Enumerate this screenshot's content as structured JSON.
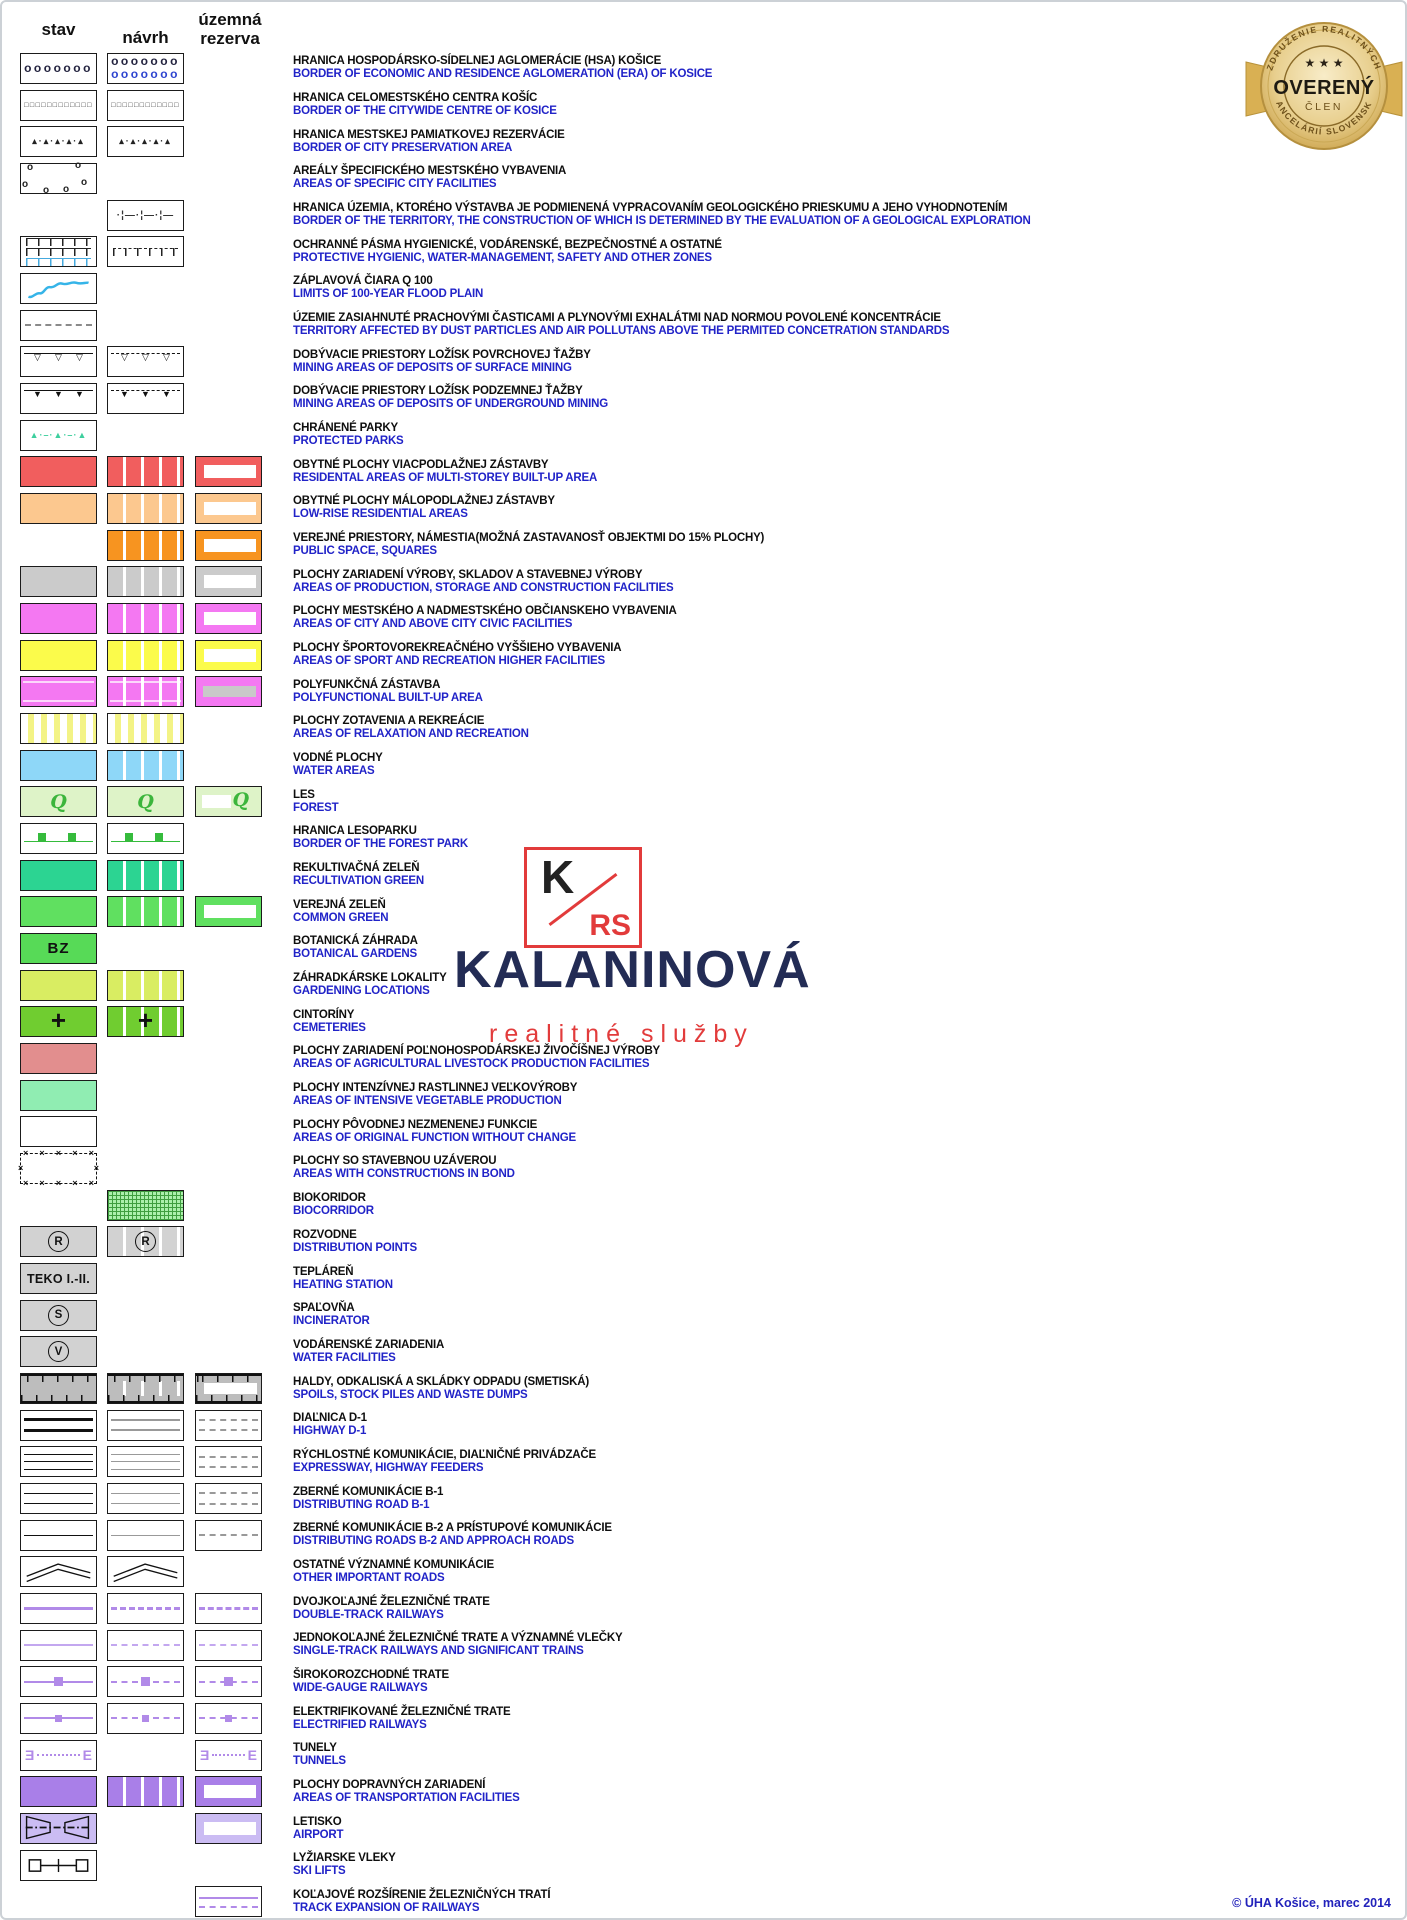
{
  "header": {
    "stav": "stav",
    "navrh": "návrh",
    "rezerva_line1": "územná",
    "rezerva_line2": "rezerva"
  },
  "badge": {
    "arc_top": "ZDRUŽENIE REALITNÝCH",
    "arc_bottom": "KANCELÁRIÍ SLOVENSKA",
    "title": "OVERENÝ",
    "subtitle": "ČLEN",
    "stars": "★ ★ ★",
    "gold": "#d3a94f",
    "gold_light": "#f8ecc8"
  },
  "watermark": {
    "mark_k": "K",
    "mark_rs": "RS",
    "name": "KALANINOVÁ",
    "tagline": "realitné služby",
    "accent": "#e23b3b",
    "navy": "#232c55"
  },
  "footer": {
    "copyright": "© ÚHA Košice, marec 2014"
  },
  "colors": {
    "label_black": "#0e0e0e",
    "label_blue": "#2123c8"
  },
  "rows": [
    {
      "sk": "HRANICA HOSPODÁRSKO-SÍDELNEJ AGLOMERÁCIE (HSA) KOŠICE",
      "en": "BORDER OF ECONOMIC AND RESIDENCE AGLOMERATION (ERA) OF KOSICE",
      "s": {
        "kind": "circles",
        "rows": [
          "#23233f"
        ]
      },
      "n": {
        "kind": "circles",
        "rows": [
          "#23233f",
          "#2d43cf"
        ]
      },
      "r": null
    },
    {
      "sk": "HRANICA CELOMESTSKÉHO CENTRA KOŠÍC",
      "en": "BORDER OF THE CITYWIDE CENTRE OF KOSICE",
      "s": {
        "kind": "squares"
      },
      "n": {
        "kind": "squares"
      },
      "r": null
    },
    {
      "sk": "HRANICA MESTSKEJ PAMIATKOVEJ REZERVÁCIE",
      "en": "BORDER OF CITY PRESERVATION AREA",
      "s": {
        "kind": "tridash"
      },
      "n": {
        "kind": "tridash"
      },
      "r": null
    },
    {
      "sk": "AREÁLY ŠPECIFICKÉHO MESTSKÉHO VYBAVENIA",
      "en": "AREAS OF SPECIFIC CITY FACILITIES",
      "s": {
        "kind": "blob"
      },
      "n": null,
      "r": null
    },
    {
      "sk": "HRANICA ÚZEMIA, KTORÉHO VÝSTAVBA JE PODMIENENÁ VYPRACOVANÍM GEOLOGICKÉHO PRIESKUMU A JEHO VYHODNOTENÍM",
      "en": "BORDER OF THE TERRITORY, THE CONSTRUCTION OF WHICH IS DETERMINED BY THE EVALUATION OF A GEOLOGICAL EXPLORATION",
      "s": null,
      "n": {
        "kind": "geo"
      },
      "r": null
    },
    {
      "sk": "OCHRANNÉ PÁSMA HYGIENICKÉ, VODÁRENSKÉ,  BEZPEČNOSTNÉ A OSTATNÉ",
      "en": "PROTECTIVE HYGIENIC, WATER-MANAGEMENT, SAFETY AND OTHER ZONES",
      "s": {
        "kind": "tzone",
        "rows": [
          "#222222",
          "#222222",
          "#45a9de"
        ],
        "dashed": false
      },
      "n": {
        "kind": "tzone",
        "rows": [
          "#222222"
        ],
        "dashed": true
      },
      "r": null
    },
    {
      "sk": "ZÁPLAVOVÁ ČIARA Q 100",
      "en": "LIMITS OF 100-YEAR FLOOD PLAIN",
      "s": {
        "kind": "wave",
        "color": "#35b4e8"
      },
      "n": null,
      "r": null
    },
    {
      "sk": "ÚZEMIE ZASIAHNUTÉ PRACHOVÝMI ČASTICAMI A PLYNOVÝMI EXHALÁTMI NAD NORMOU POVOLENÉ KONCENTRÁCIE",
      "en": "TERRITORY AFFECTED BY DUST PARTICLES AND AIR POLLUTANS ABOVE THE PERMITED CONCETRATION STANDARDS",
      "s": {
        "kind": "dash",
        "color": "#8a8a8a"
      },
      "n": null,
      "r": null
    },
    {
      "sk": "DOBÝVACIE PRIESTORY LOŽÍSK POVRCHOVEJ ŤAŽBY",
      "en": "MINING AREAS OF DEPOSITS OF SURFACE MINING",
      "s": {
        "kind": "mine",
        "tri": "hollow",
        "dash": false
      },
      "n": {
        "kind": "mine",
        "tri": "hollow",
        "dash": true
      },
      "r": null
    },
    {
      "sk": "DOBÝVACIE PRIESTORY LOŽÍSK PODZEMNEJ ŤAŽBY",
      "en": "MINING AREAS OF DEPOSITS OF UNDERGROUND MINING",
      "s": {
        "kind": "mine",
        "tri": "filled",
        "dash": false
      },
      "n": {
        "kind": "mine",
        "tri": "filled",
        "dash": true
      },
      "r": null
    },
    {
      "sk": "CHRÁNENÉ PARKY",
      "en": "PROTECTED PARKS",
      "s": {
        "kind": "parks",
        "color": "#3ecf9e"
      },
      "n": null,
      "r": null
    },
    {
      "sk": "OBYTNÉ PLOCHY VIACPODLAŽNEJ ZÁSTAVBY",
      "en": "RESIDENTAL AREAS OF MULTI-STOREY BUILT-UP AREA",
      "s": {
        "kind": "solid",
        "color": "#f15e5e"
      },
      "n": {
        "kind": "striped",
        "color": "#f15e5e"
      },
      "r": {
        "kind": "outline",
        "color": "#f15e5e"
      }
    },
    {
      "sk": "OBYTNÉ PLOCHY MÁLOPODLAŽNEJ ZÁSTAVBY",
      "en": "LOW-RISE RESIDENTIAL AREAS",
      "s": {
        "kind": "solid",
        "color": "#fcc88f"
      },
      "n": {
        "kind": "striped",
        "color": "#fcc88f"
      },
      "r": {
        "kind": "outline",
        "color": "#fcc88f"
      }
    },
    {
      "sk": "VEREJNÉ PRIESTORY, NÁMESTIA(MOŽNÁ ZASTAVANOSŤ OBJEKTMI DO 15% PLOCHY)",
      "en": "PUBLIC SPACE, SQUARES",
      "s": null,
      "n": {
        "kind": "striped",
        "color": "#f79420"
      },
      "r": {
        "kind": "outline",
        "color": "#f79420"
      }
    },
    {
      "sk": "PLOCHY ZARIADENÍ VÝROBY, SKLADOV A STAVEBNEJ VÝROBY",
      "en": "AREAS OF PRODUCTION, STORAGE AND CONSTRUCTION FACILITIES",
      "s": {
        "kind": "solid",
        "color": "#cbcbcb"
      },
      "n": {
        "kind": "striped",
        "color": "#cbcbcb"
      },
      "r": {
        "kind": "outline",
        "color": "#cbcbcb"
      }
    },
    {
      "sk": "PLOCHY MESTSKÉHO A NADMESTSKÉHO OBČIANSKEHO VYBAVENIA",
      "en": "AREAS OF CITY AND ABOVE CITY CIVIC FACILITIES",
      "s": {
        "kind": "solid",
        "color": "#f478f2"
      },
      "n": {
        "kind": "striped",
        "color": "#f478f2"
      },
      "r": {
        "kind": "outline",
        "color": "#f478f2"
      }
    },
    {
      "sk": "PLOCHY ŠPORTOVOREKREAČNÉHO VYŠŠIEHO VYBAVENIA",
      "en": "AREAS OF SPORT AND RECREATION HIGHER FACILITIES",
      "s": {
        "kind": "solid",
        "color": "#fbfb4b"
      },
      "n": {
        "kind": "striped",
        "color": "#fbfb4b"
      },
      "r": {
        "kind": "outline",
        "color": "#fbfb4b"
      }
    },
    {
      "sk": "POLYFUNKČNÁ ZÁSTAVBA",
      "en": "POLYFUNCTIONAL BUILT-UP AREA",
      "s": {
        "kind": "poly",
        "color": "#f478f2",
        "variant": "solid"
      },
      "n": {
        "kind": "poly",
        "color": "#f478f2",
        "variant": "striped"
      },
      "r": {
        "kind": "poly",
        "color": "#f478f2",
        "variant": "outline"
      }
    },
    {
      "sk": "PLOCHY ZOTAVENIA A REKREÁCIE",
      "en": "AREAS OF RELAXATION AND RECREATION",
      "s": {
        "kind": "vstripes",
        "color": "#f3f385"
      },
      "n": {
        "kind": "vstripes",
        "color": "#f3f385"
      },
      "r": null
    },
    {
      "sk": "VODNÉ PLOCHY",
      "en": "WATER AREAS",
      "s": {
        "kind": "solid",
        "color": "#8ed7f8"
      },
      "n": {
        "kind": "striped",
        "color": "#8ed7f8"
      },
      "r": null
    },
    {
      "sk": "LES",
      "en": "FOREST",
      "s": {
        "kind": "forest",
        "bg": "#def3c8",
        "glyph": "Q",
        "gc": "#3cb53c",
        "variant": "solid"
      },
      "n": {
        "kind": "forest",
        "bg": "#def3c8",
        "glyph": "Q",
        "gc": "#3cb53c",
        "variant": "solid"
      },
      "r": {
        "kind": "forest",
        "bg": "#def3c8",
        "glyph": "Q",
        "gc": "#3cb53c",
        "variant": "outline"
      }
    },
    {
      "sk": "HRANICA LESOPARKU",
      "en": "BORDER OF THE FOREST PARK",
      "s": {
        "kind": "parkline",
        "color": "#35bb3c"
      },
      "n": {
        "kind": "parkline",
        "color": "#35bb3c"
      },
      "r": null
    },
    {
      "sk": "REKULTIVAČNÁ ZELEŇ",
      "en": "RECULTIVATION GREEN",
      "s": {
        "kind": "solid",
        "color": "#2cd492"
      },
      "n": {
        "kind": "striped",
        "color": "#2cd492"
      },
      "r": null
    },
    {
      "sk": "VEREJNÁ ZELEŇ",
      "en": "COMMON GREEN",
      "s": {
        "kind": "solid",
        "color": "#60e060"
      },
      "n": {
        "kind": "striped",
        "color": "#60e060"
      },
      "r": {
        "kind": "outline",
        "color": "#60e060"
      }
    },
    {
      "sk": "BOTANICKÁ ZÁHRADA",
      "en": "BOTANICAL GARDENS",
      "s": {
        "kind": "bz",
        "color": "#57da57",
        "label": "BZ"
      },
      "n": null,
      "r": null
    },
    {
      "sk": "ZÁHRADKÁRSKE LOKALITY",
      "en": "GARDENING LOCATIONS",
      "s": {
        "kind": "solid",
        "color": "#d9ed62"
      },
      "n": {
        "kind": "striped",
        "color": "#d9ed62"
      },
      "r": null
    },
    {
      "sk": "CINTORÍNY",
      "en": "CEMETERIES",
      "s": {
        "kind": "cross",
        "color": "#70cd30",
        "label": "+",
        "striped": false
      },
      "n": {
        "kind": "cross",
        "color": "#70cd30",
        "label": "+",
        "striped": true
      },
      "r": null
    },
    {
      "sk": "PLOCHY ZARIADENÍ POĽNOHOSPODÁRSKEJ ŽIVOČÍŠNEJ VÝROBY",
      "en": "AREAS OF AGRICULTURAL LIVESTOCK PRODUCTION FACILITIES",
      "s": {
        "kind": "solid",
        "color": "#e28e8e"
      },
      "n": null,
      "r": null
    },
    {
      "sk": "PLOCHY INTENZÍVNEJ RASTLINNEJ VEĽKOVÝROBY",
      "en": "AREAS OF INTENSIVE VEGETABLE PRODUCTION",
      "s": {
        "kind": "solid",
        "color": "#90edb2"
      },
      "n": null,
      "r": null
    },
    {
      "sk": "PLOCHY PÔVODNEJ NEZMENENEJ FUNKCIE",
      "en": "AREAS OF ORIGINAL FUNCTION WITHOUT CHANGE",
      "s": {
        "kind": "plain"
      },
      "n": null,
      "r": null
    },
    {
      "sk": "PLOCHY SO STAVEBNOU UZÁVEROU",
      "en": "AREAS WITH CONSTRUCTIONS IN BOND",
      "s": {
        "kind": "bond"
      },
      "n": null,
      "r": null
    },
    {
      "sk": "BIOKORIDOR",
      "en": "BIOCORRIDOR",
      "s": null,
      "n": {
        "kind": "checker",
        "color": "#abefab",
        "line": "#3f9e3f"
      },
      "r": null
    },
    {
      "sk": "ROZVODNE",
      "en": "DISTRIBUTION POINTS",
      "s": {
        "kind": "badge",
        "label": "R",
        "shape": "circle",
        "striped": false
      },
      "n": {
        "kind": "badge",
        "label": "R",
        "shape": "circle",
        "striped": true
      },
      "r": null
    },
    {
      "sk": "TEPLÁREŇ",
      "en": "HEATING STATION",
      "s": {
        "kind": "badge",
        "label": "TEKO I.-II.",
        "shape": "text",
        "striped": false
      },
      "n": null,
      "r": null
    },
    {
      "sk": "SPAĽOVŇA",
      "en": "INCINERATOR",
      "s": {
        "kind": "badge",
        "label": "S",
        "shape": "circle",
        "striped": false
      },
      "n": null,
      "r": null
    },
    {
      "sk": "VODÁRENSKÉ ZARIADENIA",
      "en": "WATER FACILITIES",
      "s": {
        "kind": "badge",
        "label": "V",
        "shape": "circle",
        "striped": false
      },
      "n": null,
      "r": null
    },
    {
      "sk": "HALDY, ODKALISKÁ A SKLÁDKY ODPADU (SMETISKÁ)",
      "en": "SPOILS, STOCK PILES AND WASTE DUMPS",
      "s": {
        "kind": "haldy",
        "variant": "solid"
      },
      "n": {
        "kind": "haldy",
        "variant": "striped"
      },
      "r": {
        "kind": "haldy",
        "variant": "outline"
      }
    },
    {
      "sk": "DIAĽNICA D-1",
      "en": "HIGHWAY D-1",
      "s": {
        "kind": "road",
        "lines": [
          {
            "w": 3,
            "c": "#111111"
          },
          {
            "w": 3,
            "c": "#111111"
          }
        ]
      },
      "n": {
        "kind": "road",
        "lines": [
          {
            "w": 2.5,
            "c": "#999999"
          },
          {
            "w": 2.5,
            "c": "#999999"
          }
        ]
      },
      "r": {
        "kind": "road",
        "lines": [
          {
            "w": 2.5,
            "c": "#999999",
            "dash": true
          },
          {
            "w": 2.5,
            "c": "#999999",
            "dash": true
          }
        ]
      }
    },
    {
      "sk": "RÝCHLOSTNÉ KOMUNIKÁCIE, DIAĽNIČNÉ PRIVÁDZAČE",
      "en": "EXPRESSWAY, HIGHWAY FEEDERS",
      "s": {
        "kind": "road",
        "lines": [
          {
            "w": 1.7,
            "c": "#111111"
          },
          {
            "w": 1.7,
            "c": "#111111"
          },
          {
            "w": 1.7,
            "c": "#111111"
          }
        ]
      },
      "n": {
        "kind": "road",
        "lines": [
          {
            "w": 1.7,
            "c": "#999999"
          },
          {
            "w": 1.7,
            "c": "#999999"
          },
          {
            "w": 1.7,
            "c": "#999999"
          }
        ]
      },
      "r": {
        "kind": "road",
        "lines": [
          {
            "w": 2,
            "c": "#999999",
            "dash": true
          },
          {
            "w": 2,
            "c": "#999999",
            "dash": true
          }
        ]
      }
    },
    {
      "sk": "ZBERNÉ KOMUNIKÁCIE B-1",
      "en": "DISTRIBUTING ROAD B-1",
      "s": {
        "kind": "road",
        "lines": [
          {
            "w": 1.7,
            "c": "#111111"
          },
          {
            "w": 1.7,
            "c": "#111111"
          }
        ]
      },
      "n": {
        "kind": "road",
        "lines": [
          {
            "w": 1.7,
            "c": "#999999"
          },
          {
            "w": 1.7,
            "c": "#999999"
          }
        ]
      },
      "r": {
        "kind": "road",
        "lines": [
          {
            "w": 2,
            "c": "#999999",
            "dash": true
          },
          {
            "w": 2,
            "c": "#999999",
            "dash": true
          }
        ]
      }
    },
    {
      "sk": "ZBERNÉ KOMUNIKÁCIE B-2 A PRÍSTUPOVÉ KOMUNIKÁCIE",
      "en": "DISTRIBUTING ROADS B-2 AND APPROACH ROADS",
      "s": {
        "kind": "road",
        "lines": [
          {
            "w": 1.7,
            "c": "#111111"
          }
        ]
      },
      "n": {
        "kind": "road",
        "lines": [
          {
            "w": 1.7,
            "c": "#999999"
          }
        ]
      },
      "r": {
        "kind": "road",
        "lines": [
          {
            "w": 2,
            "c": "#999999",
            "dash": true
          }
        ]
      }
    },
    {
      "sk": "OSTATNÉ VÝZNAMNÉ KOMUNIKÁCIE",
      "en": "OTHER IMPORTANT ROADS",
      "s": {
        "kind": "chevron"
      },
      "n": {
        "kind": "chevron"
      },
      "r": null
    },
    {
      "sk": "DVOJKOĽAJNÉ ŽELEZNIČNÉ TRATE",
      "en": "DOUBLE-TRACK RAILWAYS",
      "s": {
        "kind": "rail",
        "w": 3,
        "color": "#b18ae8",
        "dashed": false
      },
      "n": {
        "kind": "rail",
        "w": 3,
        "color": "#b18ae8",
        "dashed": true
      },
      "r": {
        "kind": "rail",
        "w": 3,
        "color": "#b18ae8",
        "dashed": true
      }
    },
    {
      "sk": "JEDNOKOĽAJNÉ ŽELEZNIČNÉ TRATE A VÝZNAMNÉ VLEČKY",
      "en": "SINGLE-TRACK RAILWAYS AND SIGNIFICANT TRAINS",
      "s": {
        "kind": "rail",
        "w": 2,
        "color": "#c3a7ef",
        "dashed": false
      },
      "n": {
        "kind": "rail",
        "w": 2,
        "color": "#c3a7ef",
        "dashed": true
      },
      "r": {
        "kind": "rail",
        "w": 2,
        "color": "#c3a7ef",
        "dashed": true
      }
    },
    {
      "sk": "ŠIROKOROZCHODNÉ TRATE",
      "en": "WIDE-GAUGE RAILWAYS",
      "s": {
        "kind": "rail",
        "w": 2.5,
        "color": "#b18ae8",
        "dashed": false,
        "blob": 9
      },
      "n": {
        "kind": "rail",
        "w": 2.5,
        "color": "#b18ae8",
        "dashed": true,
        "blob": 9
      },
      "r": {
        "kind": "rail",
        "w": 2.5,
        "color": "#b18ae8",
        "dashed": true,
        "blob": 9
      }
    },
    {
      "sk": "ELEKTRIFIKOVANÉ ŽELEZNIČNÉ TRATE",
      "en": "ELECTRIFIED RAILWAYS",
      "s": {
        "kind": "rail",
        "w": 2.5,
        "color": "#b18ae8",
        "dashed": false,
        "blob": 7
      },
      "n": {
        "kind": "rail",
        "w": 2.5,
        "color": "#b18ae8",
        "dashed": true,
        "blob": 7
      },
      "r": {
        "kind": "rail",
        "w": 2.5,
        "color": "#b18ae8",
        "dashed": true,
        "blob": 7
      }
    },
    {
      "sk": "TUNELY",
      "en": "TUNNELS",
      "s": {
        "kind": "tunnel",
        "color": "#b18ae8"
      },
      "n": null,
      "r": {
        "kind": "tunnel",
        "color": "#b18ae8"
      }
    },
    {
      "sk": "PLOCHY DOPRAVNÝCH ZARIADENÍ",
      "en": "AREAS OF TRANSPORTATION FACILITIES",
      "s": {
        "kind": "solid",
        "color": "#a97fe8"
      },
      "n": {
        "kind": "striped",
        "color": "#a97fe8"
      },
      "r": {
        "kind": "outline",
        "color": "#a97fe8"
      }
    },
    {
      "sk": "LETISKO",
      "en": "AIRPORT",
      "s": {
        "kind": "airport",
        "bg": "#cbbcf3"
      },
      "n": null,
      "r": {
        "kind": "outline",
        "color": "#cbbcf3"
      }
    },
    {
      "sk": "LYŽIARSKE VLEKY",
      "en": "SKI LIFTS",
      "s": {
        "kind": "skilift"
      },
      "n": null,
      "r": null
    },
    {
      "sk": "KOĽAJOVÉ ROZŠÍRENIE ŽELEZNIČNÝCH TRATÍ",
      "en": "TRACK EXPANSION OF RAILWAYS",
      "s": null,
      "n": null,
      "r": {
        "kind": "railx",
        "color": "#b18ae8"
      }
    }
  ]
}
